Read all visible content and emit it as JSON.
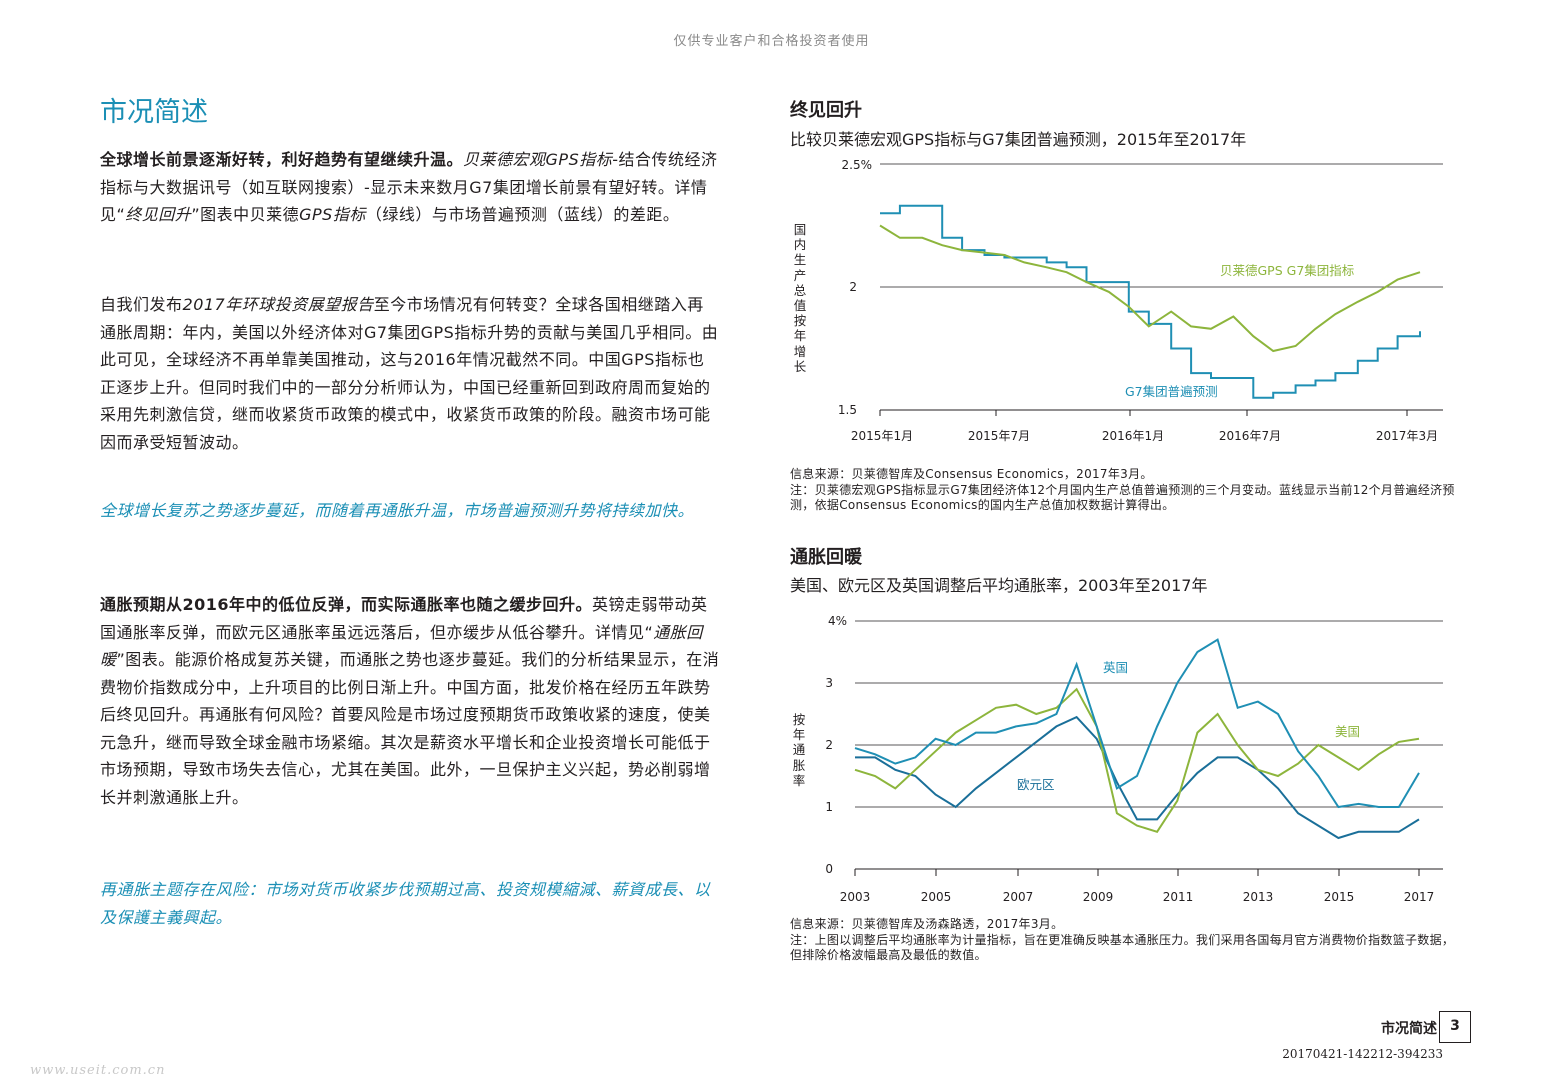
{
  "header": {
    "banner": "仅供专业客户和合格投资者使用"
  },
  "page_title": "市况简述",
  "body": {
    "p1_bold": "全球增长前景逐渐好转，利好趋势有望继续升温。",
    "p1_italic": "贝莱德宏观GPS指标",
    "p1_text_a": "-结合传统经济指标与大数据讯号（如互联网搜索）-显示未来数月G7集团增长前景有望好转。详情见“",
    "p1_italic2": "终见回升",
    "p1_text_b": "”图表中贝莱德",
    "p1_italic3": "GPS指标",
    "p1_text_c": "（绿线）与市场普遍预测（蓝线）的差距。",
    "p2_text_a": "自我们发布",
    "p2_italic": "2017年环球投资展望报告",
    "p2_text_b": "至今市场情况有何转变？全球各国相继踏入再通胀周期：年内，美国以外经济体对G7集团GPS指标升势的贡献与美国几乎相同。由此可见，全球经济不再单靠美国推动，这与2016年情况截然不同。中国GPS指标也正逐步上升。但同时我们中的一部分分析师认为，中国已经重新回到政府周而复始的采用先刺激信贷，继而收紧货币政策的模式中，收紧货币政策的阶段。融资市场可能因而承受短暂波动。",
    "callout1": "全球增长复苏之势逐步蔓延，而随着再通胀升温，市场普遍预测升势将持续加快。",
    "p3_bold": "通胀预期从2016年中的低位反弹，而实际通胀率也随之缓步回升。",
    "p3_text_a": "英镑走弱带动英国通胀率反弹，而欧元区通胀率虽远远落后，但亦缓步从低谷攀升。详情见“",
    "p3_italic": "通胀回暖",
    "p3_text_b": "”图表。能源价格成复苏关键，而通胀之势也逐步蔓延。我们的分析结果显示，在消费物价指数成分中，上升项目的比例日渐上升。中国方面，批发价格在经历五年跌势后终见回升。再通胀有何风险？首要风险是市场过度预期货币政策收紧的速度，使美元急升，继而导致全球金融市场紧缩。其次是薪资水平增长和企业投资增长可能低于市场预期，导致市场失去信心，尤其在美国。此外，一旦保护主义兴起，势必削弱增长并刺激通胀上升。",
    "callout2": "再通胀主题存在风险：市场对货币收紧步伐预期过高、投资规模縮減、薪資成長、以及保護主義興起。"
  },
  "chart1": {
    "heading": "终见回升",
    "subtitle": "比较贝莱德宏观GPS指标与G7集团普遍预测，2015年至2017年",
    "ylabel": "国内生产总值按年增长",
    "yticks": [
      "2.5%",
      "2",
      "1.5"
    ],
    "xticks": [
      "2015年1月",
      "2015年7月",
      "2016年1月",
      "2016年7月",
      "2017年3月"
    ],
    "label_gps": "贝莱德GPS G7集团指标",
    "label_consensus": "G7集团普遍预测",
    "source": "信息来源：贝莱德智库及Consensus Economics，2017年3月。",
    "note": "注：贝莱德宏观GPS指标显示G7集团经济体12个月国内生产总值普遍预测的三个月变动。蓝线显示当前12个月普遍经济预测，依据Consensus Economics的国内生产总值加权数据计算得出。",
    "colors": {
      "gps": "#8db53c",
      "consensus": "#1f8fb4",
      "axis": "#231f20"
    }
  },
  "chart2": {
    "heading": "通胀回暖",
    "subtitle": "美国、欧元区及英国调整后平均通胀率，2003年至2017年",
    "ylabel": "按年通胀率",
    "yticks": [
      "4%",
      "3",
      "2",
      "1",
      "0"
    ],
    "xticks": [
      "2003",
      "2005",
      "2007",
      "2009",
      "2011",
      "2013",
      "2015",
      "2017"
    ],
    "label_uk": "英国",
    "label_us": "美国",
    "label_eu": "欧元区",
    "source": "信息来源：贝莱德智库及汤森路透，2017年3月。",
    "note": "注：上图以调整后平均通胀率为计量指标，旨在更准确反映基本通胀压力。我们采用各国每月官方消费物价指数篮子数据，但排除价格波幅最高及最低的数值。",
    "colors": {
      "uk": "#1f8fb4",
      "us": "#8db53c",
      "eu": "#1a6f99"
    }
  },
  "chart_data": [
    {
      "type": "line",
      "title": "终见回升",
      "ylabel": "国内生产总值按年增长",
      "ylim": [
        1.5,
        2.5
      ],
      "x": [
        2015.0,
        2015.08,
        2015.17,
        2015.25,
        2015.33,
        2015.42,
        2015.5,
        2015.58,
        2015.67,
        2015.75,
        2015.83,
        2015.92,
        2016.0,
        2016.08,
        2016.17,
        2016.25,
        2016.33,
        2016.42,
        2016.5,
        2016.58,
        2016.67,
        2016.75,
        2016.83,
        2016.92,
        2017.0,
        2017.08,
        2017.17
      ],
      "series": [
        {
          "name": "贝莱德GPS G7集团指标",
          "values": [
            2.25,
            2.2,
            2.2,
            2.17,
            2.15,
            2.14,
            2.13,
            2.1,
            2.08,
            2.06,
            2.02,
            1.98,
            1.92,
            1.84,
            1.9,
            1.84,
            1.83,
            1.88,
            1.8,
            1.74,
            1.76,
            1.83,
            1.89,
            1.94,
            1.98,
            2.03,
            2.06
          ]
        },
        {
          "name": "G7集团普遍预测",
          "values": [
            2.3,
            2.33,
            2.33,
            2.2,
            2.15,
            2.13,
            2.12,
            2.12,
            2.1,
            2.08,
            2.02,
            2.02,
            1.9,
            1.85,
            1.75,
            1.65,
            1.63,
            1.63,
            1.55,
            1.57,
            1.6,
            1.62,
            1.65,
            1.7,
            1.75,
            1.8,
            1.82
          ]
        }
      ]
    },
    {
      "type": "line",
      "title": "通胀回暖",
      "ylabel": "按年通胀率",
      "ylim": [
        0,
        4
      ],
      "x": [
        2003,
        2003.5,
        2004,
        2004.5,
        2005,
        2005.5,
        2006,
        2006.5,
        2007,
        2007.5,
        2008,
        2008.5,
        2009,
        2009.5,
        2010,
        2010.5,
        2011,
        2011.5,
        2012,
        2012.5,
        2013,
        2013.5,
        2014,
        2014.5,
        2015,
        2015.5,
        2016,
        2016.5,
        2017
      ],
      "series": [
        {
          "name": "英国",
          "values": [
            1.95,
            1.85,
            1.7,
            1.8,
            2.1,
            2.0,
            2.2,
            2.2,
            2.3,
            2.35,
            2.5,
            3.3,
            2.3,
            1.3,
            1.5,
            2.3,
            3.0,
            3.5,
            3.7,
            2.6,
            2.7,
            2.5,
            1.9,
            1.5,
            1.0,
            1.05,
            1.0,
            1.0,
            1.55
          ]
        },
        {
          "name": "美国",
          "values": [
            1.6,
            1.5,
            1.3,
            1.6,
            1.9,
            2.2,
            2.4,
            2.6,
            2.65,
            2.5,
            2.6,
            2.9,
            2.3,
            0.9,
            0.7,
            0.6,
            1.1,
            2.2,
            2.5,
            2.0,
            1.6,
            1.5,
            1.7,
            2.0,
            1.8,
            1.6,
            1.85,
            2.05,
            2.1
          ]
        },
        {
          "name": "欧元区",
          "values": [
            1.8,
            1.8,
            1.6,
            1.5,
            1.2,
            1.0,
            1.3,
            1.55,
            1.8,
            2.05,
            2.3,
            2.45,
            2.1,
            1.4,
            0.8,
            0.8,
            1.2,
            1.55,
            1.8,
            1.8,
            1.6,
            1.3,
            0.9,
            0.7,
            0.5,
            0.6,
            0.6,
            0.6,
            0.8
          ]
        }
      ]
    }
  ],
  "footer": {
    "section": "市况简述",
    "page": "3",
    "code": "20170421-142212-394233"
  },
  "watermark": "www.useit.com.cn"
}
